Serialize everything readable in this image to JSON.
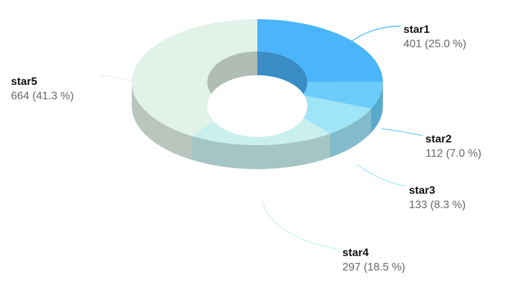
{
  "chart_data": {
    "type": "pie",
    "style": "3d-donut",
    "title": "",
    "slices": [
      {
        "name": "star1",
        "value": 401,
        "percent_label": "401 (25.0 %)",
        "color": "#4ab5fb",
        "line_color": "#4ab5fb"
      },
      {
        "name": "star2",
        "value": 112,
        "percent_label": "112 (7.0 %)",
        "color": "#6ccdfa",
        "line_color": "#6ccdfa"
      },
      {
        "name": "star3",
        "value": 133,
        "percent_label": "133 (8.3 %)",
        "color": "#9fe4f7",
        "line_color": "#9fe4f7"
      },
      {
        "name": "star4",
        "value": 297,
        "percent_label": "297 (18.5 %)",
        "color": "#c9f0ef",
        "line_color": "#c9f0ef"
      },
      {
        "name": "star5",
        "value": 664,
        "percent_label": "664 (41.3 %)",
        "color": "#e1f2e8",
        "line_color": "#e1f2e8"
      }
    ],
    "legend": "none"
  }
}
